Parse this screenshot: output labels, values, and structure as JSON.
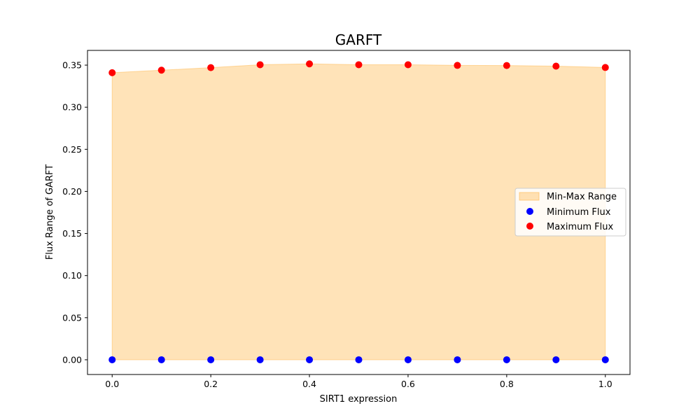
{
  "chart_data": {
    "type": "area",
    "title": "GARFT",
    "xlabel": "SIRT1 expression",
    "ylabel": "Flux Range of GARFT",
    "xlim": [
      -0.05,
      1.05
    ],
    "ylim": [
      -0.0175,
      0.3675
    ],
    "x_ticks": [
      0.0,
      0.2,
      0.4,
      0.6,
      0.8,
      1.0
    ],
    "x_tick_labels": [
      "0.0",
      "0.2",
      "0.4",
      "0.6",
      "0.8",
      "1.0"
    ],
    "y_ticks": [
      0.0,
      0.05,
      0.1,
      0.15,
      0.2,
      0.25,
      0.3,
      0.35
    ],
    "y_tick_labels": [
      "0.00",
      "0.05",
      "0.10",
      "0.15",
      "0.20",
      "0.25",
      "0.30",
      "0.35"
    ],
    "x": [
      0.0,
      0.1,
      0.2,
      0.3,
      0.4,
      0.5,
      0.6,
      0.7,
      0.8,
      0.9,
      1.0
    ],
    "series": [
      {
        "name": "Min-Max Range",
        "kind": "fill_between",
        "color": "#ffb84d",
        "lower": [
          0,
          0,
          0,
          0,
          0,
          0,
          0,
          0,
          0,
          0,
          0
        ],
        "upper": [
          0.341,
          0.344,
          0.347,
          0.3505,
          0.3515,
          0.3505,
          0.3505,
          0.3497,
          0.3495,
          0.3488,
          0.3472
        ]
      },
      {
        "name": "Minimum Flux",
        "kind": "scatter",
        "color": "#0000ff",
        "values": [
          0,
          0,
          0,
          0,
          0,
          0,
          0,
          0,
          0,
          0,
          0
        ]
      },
      {
        "name": "Maximum Flux",
        "kind": "scatter",
        "color": "#ff0000",
        "values": [
          0.341,
          0.344,
          0.347,
          0.3505,
          0.3515,
          0.3505,
          0.3505,
          0.3497,
          0.3495,
          0.3488,
          0.3472
        ]
      }
    ],
    "legend": {
      "position": "center-right",
      "entries": [
        "Min-Max Range",
        "Minimum Flux",
        "Maximum Flux"
      ]
    },
    "grid": false
  }
}
